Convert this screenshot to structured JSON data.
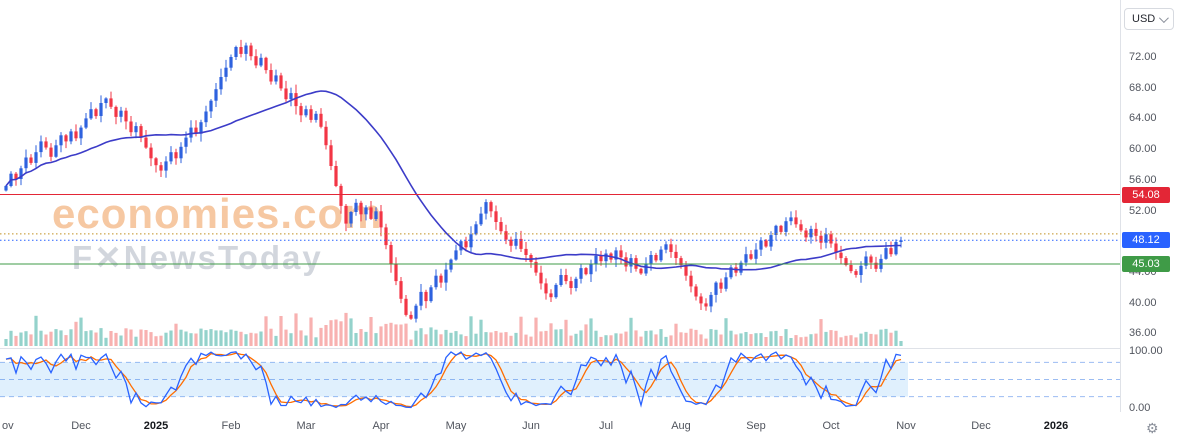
{
  "meta": {
    "currency": "USD"
  },
  "icons": {
    "gear": "⚙",
    "chevron": "chevron-down"
  },
  "watermark": {
    "line1": "economies.com",
    "line2": "F✕NewsToday"
  },
  "price_axis": {
    "ticks": [
      "72.00",
      "68.00",
      "64.00",
      "60.00",
      "56.00",
      "52.00",
      "48.00",
      "44.00",
      "40.00",
      "36.00"
    ],
    "sub_ticks": [
      "100.00",
      "0.00"
    ]
  },
  "time_axis": {
    "labels": [
      {
        "label": "ov",
        "i": null
      },
      {
        "label": "Dec",
        "i": 15
      },
      {
        "label": "2025",
        "i": 30
      },
      {
        "label": "Feb",
        "i": 45
      },
      {
        "label": "Mar",
        "i": 60
      },
      {
        "label": "Apr",
        "i": 75
      },
      {
        "label": "May",
        "i": 90
      },
      {
        "label": "Jun",
        "i": 105
      },
      {
        "label": "Jul",
        "i": 120
      },
      {
        "label": "Aug",
        "i": 135
      },
      {
        "label": "Sep",
        "i": 150
      },
      {
        "label": "Oct",
        "i": 165
      },
      {
        "label": "Nov",
        "i": 180
      },
      {
        "label": "Dec",
        "i": 195
      },
      {
        "label": "2026",
        "i": 210
      }
    ]
  },
  "levels": {
    "lines": [
      {
        "name": "resistance",
        "price": 54.08,
        "label": "54.08",
        "color": "#e32636",
        "style": "solid",
        "badge": true
      },
      {
        "name": "pivot-dotted",
        "price": 48.95,
        "label": "",
        "color": "#c09020",
        "style": "dotted",
        "badge": false
      },
      {
        "name": "last-price",
        "price": 48.12,
        "label": "48.12",
        "color": "#2962ff",
        "style": "dotted",
        "badge": true
      },
      {
        "name": "support",
        "price": 45.03,
        "label": "45.03",
        "color": "#3f9b47",
        "style": "solid",
        "badge": true
      }
    ]
  },
  "colors": {
    "up": "#2e62de",
    "down": "#f23645",
    "vol_up": "rgba(42,166,152,0.5)",
    "vol_down": "rgba(239,83,80,0.45)",
    "ma": "#3c3cc8",
    "stoch_k": "#2962ff",
    "stoch_d": "#ff6d00",
    "band_fill": "rgba(33,150,243,0.14)",
    "band_line": "rgba(73,133,231,0.55)"
  },
  "chart_data": {
    "type": "candlestick",
    "title": "",
    "x_range_labels": [
      "Nov",
      "Dec",
      "2025",
      "Feb",
      "Mar",
      "Apr",
      "May",
      "Jun",
      "Jul",
      "Aug",
      "Sep",
      "Oct",
      "Nov",
      "Dec",
      "2026"
    ],
    "y_axis_ticks": [
      72,
      68,
      64,
      60,
      56,
      52,
      48,
      44,
      40,
      36
    ],
    "sub_panel": {
      "type": "stochastic",
      "y_ticks": [
        100,
        0
      ],
      "bands": [
        80,
        50,
        20
      ]
    },
    "key_levels": {
      "resistance": 54.08,
      "last_price": 48.12,
      "support": 45.03
    },
    "open_first": 54.6,
    "closes": [
      55.2,
      56.8,
      56.1,
      57.5,
      58.9,
      58.2,
      59.6,
      61.0,
      60.2,
      59.0,
      60.5,
      61.8,
      61.0,
      62.3,
      61.4,
      62.8,
      64.0,
      65.2,
      64.3,
      66.0,
      66.6,
      65.5,
      64.2,
      65.0,
      63.6,
      62.2,
      63.0,
      61.5,
      60.2,
      58.8,
      57.9,
      57.2,
      58.4,
      59.6,
      58.8,
      60.3,
      61.5,
      62.8,
      62.0,
      63.5,
      64.9,
      66.3,
      67.8,
      69.4,
      70.6,
      72.0,
      73.3,
      72.4,
      73.5,
      72.1,
      70.9,
      71.9,
      70.3,
      68.8,
      69.6,
      67.9,
      66.5,
      67.3,
      65.6,
      64.4,
      65.2,
      63.8,
      64.6,
      62.9,
      60.5,
      57.8,
      55.2,
      52.6,
      50.3,
      51.8,
      53.0,
      51.5,
      52.4,
      50.9,
      51.9,
      49.8,
      47.5,
      45.0,
      42.8,
      40.5,
      38.4,
      37.9,
      39.6,
      41.4,
      40.2,
      42.0,
      43.5,
      42.6,
      44.3,
      45.6,
      46.8,
      48.0,
      47.2,
      48.9,
      50.2,
      51.6,
      53.1,
      51.9,
      50.5,
      49.3,
      48.2,
      47.4,
      48.3,
      47.0,
      46.2,
      45.3,
      43.9,
      42.5,
      41.2,
      40.7,
      42.3,
      43.6,
      42.8,
      41.9,
      43.1,
      44.5,
      43.7,
      45.0,
      46.1,
      45.4,
      46.4,
      45.6,
      46.8,
      45.9,
      44.7,
      45.8,
      44.4,
      43.8,
      45.1,
      46.2,
      45.5,
      46.9,
      47.6,
      46.6,
      45.8,
      44.9,
      43.5,
      42.1,
      40.8,
      39.9,
      39.5,
      41.0,
      42.6,
      41.8,
      43.3,
      44.6,
      43.9,
      45.2,
      46.3,
      45.7,
      46.9,
      48.1,
      47.3,
      48.8,
      50.0,
      49.2,
      50.6,
      51.1,
      50.2,
      49.4,
      48.5,
      49.6,
      48.7,
      47.8,
      48.9,
      47.7,
      46.5,
      45.8,
      44.9,
      44.1,
      43.6,
      44.8,
      46.0,
      45.2,
      44.4,
      45.7,
      47.1,
      46.3,
      47.9,
      48.12
    ],
    "indicators": {
      "sma_window": 28,
      "stoch_k": 10,
      "stoch_d": 3,
      "bands": [
        80,
        50,
        20
      ]
    },
    "last_price": 48.12
  }
}
